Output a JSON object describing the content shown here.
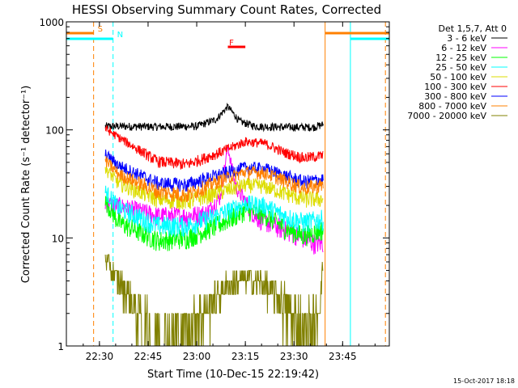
{
  "chart_data": {
    "type": "line",
    "title": "HESSI Observing Summary Count Rates, Corrected",
    "xlabel": "Start Time (10-Dec-15 22:19:42)",
    "ylabel": "Corrected Count Rate (s⁻¹ detector⁻¹)",
    "ylog": true,
    "ylim": [
      1,
      1000
    ],
    "xlim_min": [
      22.33,
      23.99
    ],
    "y_ticks": [
      {
        "value": 1,
        "label": "1"
      },
      {
        "value": 10,
        "label": "10"
      },
      {
        "value": 100,
        "label": "100"
      },
      {
        "value": 1000,
        "label": "1000"
      }
    ],
    "x_ticks": [
      {
        "value": 22.5,
        "label": "22:30"
      },
      {
        "value": 22.75,
        "label": "22:45"
      },
      {
        "value": 23.0,
        "label": "23:00"
      },
      {
        "value": 23.25,
        "label": "23:15"
      },
      {
        "value": 23.5,
        "label": "23:30"
      },
      {
        "value": 23.75,
        "label": "23:45"
      }
    ],
    "legend_header": "Det 1,5,7, Att 0",
    "legend_placement": "right",
    "data_start": 22.53,
    "data_end": 23.65,
    "series": [
      {
        "name": "3 - 6 keV",
        "color": "#000000",
        "x": [
          22.53,
          22.6,
          22.8,
          23.0,
          23.1,
          23.16,
          23.22,
          23.3,
          23.45,
          23.6,
          23.65
        ],
        "y": [
          108,
          108,
          107,
          108,
          125,
          165,
          120,
          108,
          106,
          106,
          112
        ]
      },
      {
        "name": "6 - 12 keV",
        "color": "#ff00ff",
        "x": [
          22.53,
          22.6,
          22.8,
          22.95,
          23.05,
          23.12,
          23.16,
          23.2,
          23.3,
          23.4,
          23.5,
          23.6,
          23.65
        ],
        "y": [
          21,
          20,
          16,
          16,
          17,
          24,
          70,
          30,
          16,
          13,
          11,
          9,
          9
        ]
      },
      {
        "name": "12 - 25 keV",
        "color": "#00ff00",
        "x": [
          22.53,
          22.6,
          22.8,
          22.95,
          23.1,
          23.25,
          23.35,
          23.45,
          23.55,
          23.65
        ],
        "y": [
          22,
          14,
          9.5,
          10,
          13,
          18,
          16.5,
          12.5,
          10.5,
          12
        ]
      },
      {
        "name": "25 - 50 keV",
        "color": "#00ffff",
        "x": [
          22.53,
          22.6,
          22.8,
          22.95,
          23.1,
          23.25,
          23.35,
          23.45,
          23.55,
          23.65
        ],
        "y": [
          27,
          19,
          13,
          13,
          16,
          21,
          20,
          16,
          14,
          15
        ]
      },
      {
        "name": "50 - 100 keV",
        "color": "#dddd00",
        "x": [
          22.53,
          22.6,
          22.8,
          22.95,
          23.1,
          23.25,
          23.35,
          23.45,
          23.55,
          23.65
        ],
        "y": [
          44,
          32,
          23,
          22,
          26,
          31,
          30,
          26,
          23,
          23
        ]
      },
      {
        "name": "100 - 300 keV",
        "color": "#ff0000",
        "x": [
          22.53,
          22.6,
          22.8,
          22.95,
          23.1,
          23.25,
          23.35,
          23.45,
          23.55,
          23.65
        ],
        "y": [
          103,
          85,
          51,
          48,
          60,
          78,
          75,
          62,
          55,
          58
        ]
      },
      {
        "name": "300 - 800 keV",
        "color": "#0000ff",
        "x": [
          22.53,
          22.6,
          22.8,
          22.95,
          23.1,
          23.25,
          23.35,
          23.45,
          23.55,
          23.65
        ],
        "y": [
          60,
          47,
          32,
          31,
          38,
          45,
          44,
          38,
          33,
          35
        ]
      },
      {
        "name": "800 - 7000 keV",
        "color": "#ff8000",
        "x": [
          22.53,
          22.6,
          22.8,
          22.95,
          23.1,
          23.25,
          23.35,
          23.45,
          23.55,
          23.65
        ],
        "y": [
          52,
          39,
          27,
          25,
          33,
          41,
          40,
          34,
          29,
          31
        ]
      },
      {
        "name": "7000 - 20000 keV",
        "color": "#808000",
        "x": [
          22.53,
          22.58,
          22.65,
          22.75,
          22.85,
          22.95,
          23.05,
          23.15,
          23.25,
          23.35,
          23.45,
          23.55,
          23.62,
          23.65
        ],
        "y": [
          6.5,
          4.5,
          3,
          1.4,
          1.2,
          1.3,
          2.3,
          3.5,
          4.2,
          3.7,
          2.5,
          1.4,
          1.6,
          6
        ]
      }
    ],
    "vertical_markers": [
      {
        "x": 22.33,
        "color": "#00ffff",
        "style": "solid"
      },
      {
        "x": 22.47,
        "color": "#ff8000",
        "style": "dashed"
      },
      {
        "x": 22.57,
        "color": "#00ffff",
        "style": "dashed"
      },
      {
        "x": 23.66,
        "color": "#ff8000",
        "style": "solid"
      },
      {
        "x": 23.79,
        "color": "#00ffff",
        "style": "solid"
      },
      {
        "x": 23.97,
        "color": "#ff8000",
        "style": "dashed"
      }
    ],
    "flags": [
      {
        "label": "S",
        "color": "#ff8000",
        "segments": [
          [
            22.33,
            22.47
          ],
          [
            23.66,
            23.99
          ]
        ],
        "level": 0
      },
      {
        "label": "N",
        "color": "#00ffff",
        "segments": [
          [
            22.33,
            22.57
          ],
          [
            23.79,
            23.99
          ]
        ],
        "level": 1
      },
      {
        "label": "F",
        "color": "#ff0000",
        "segments": [
          [
            23.16,
            23.25
          ]
        ],
        "level": 2
      }
    ],
    "timestamp": "15-Oct-2017 18:18"
  }
}
